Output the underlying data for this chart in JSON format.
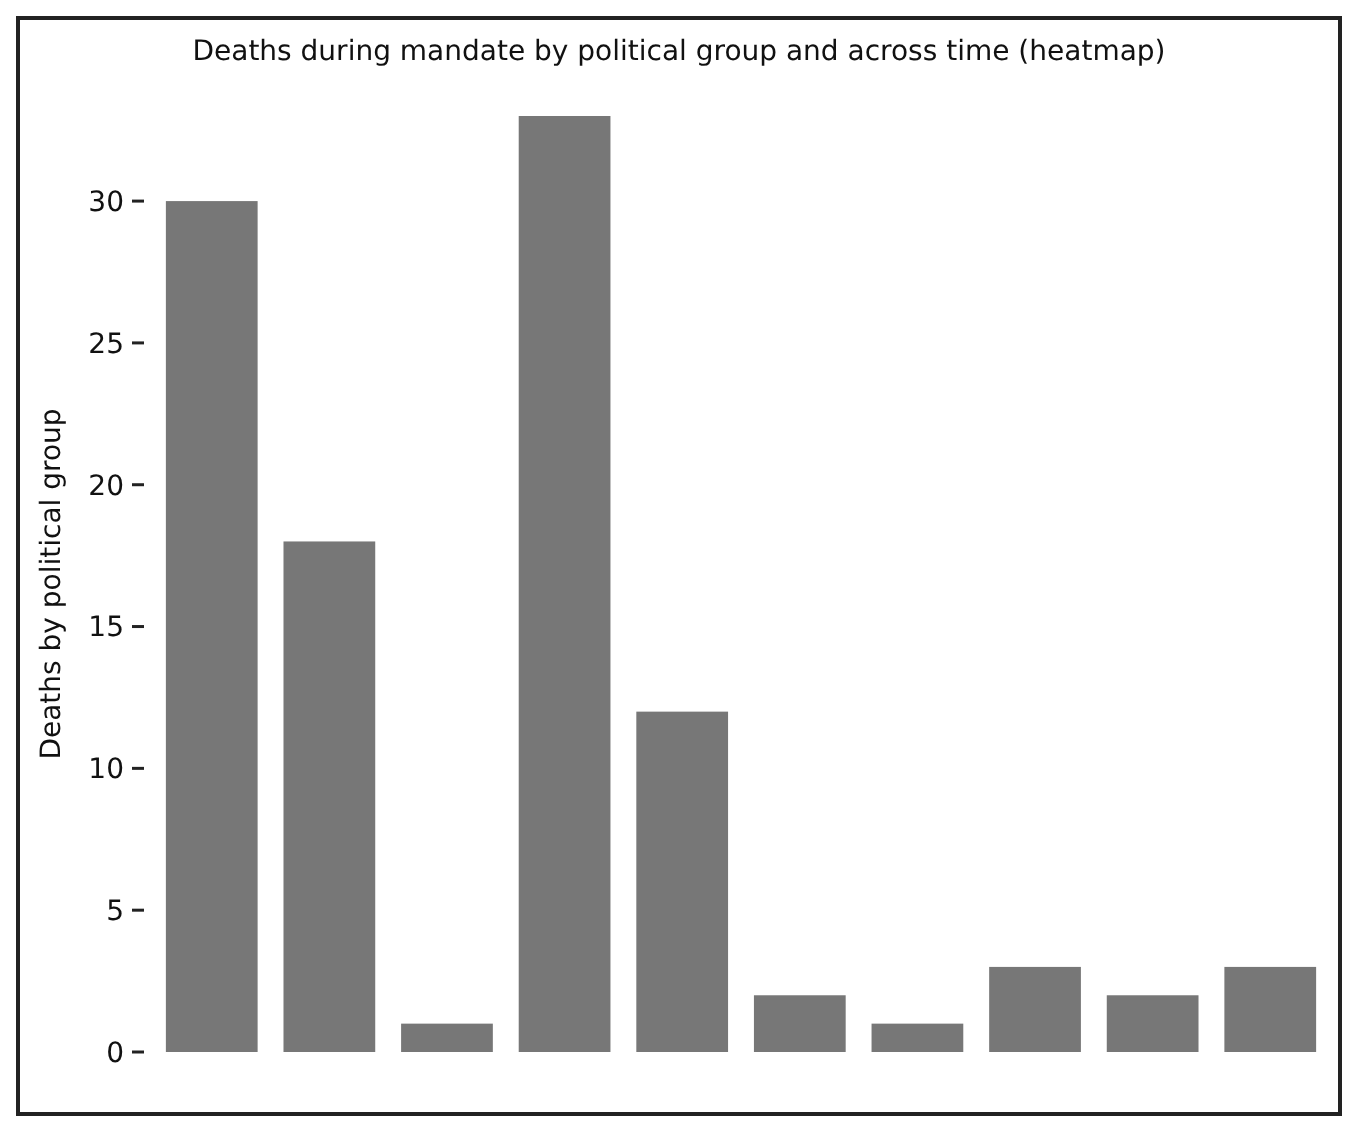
{
  "chart_data": {
    "type": "bar",
    "title": "Deaths during mandate by political group and across time (heatmap)",
    "ylabel": "Deaths by political group",
    "categories": [
      null,
      null,
      null,
      null,
      null,
      null,
      null,
      null,
      null,
      null
    ],
    "values": [
      30,
      18,
      1,
      33,
      12,
      2,
      1,
      3,
      2,
      3
    ],
    "color": "#777777",
    "ylim": [
      0,
      33
    ],
    "yticks": [
      0,
      5,
      10,
      15,
      20,
      25,
      30
    ],
    "grid": false
  }
}
